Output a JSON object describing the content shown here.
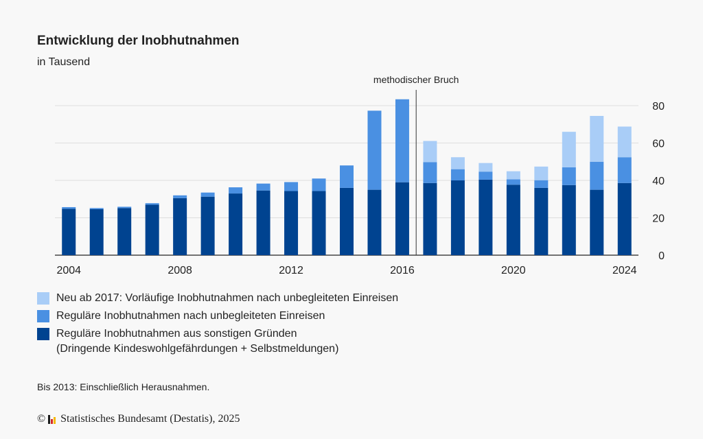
{
  "header": {
    "title": "Entwicklung der Inobhutnahmen",
    "subtitle": "in Tausend"
  },
  "legend": [
    {
      "label": "Neu ab 2017: Vorläufige Inobhutnahmen nach unbegleiteten Einreisen",
      "color": "#a9cdf7"
    },
    {
      "label": "Reguläre Inobhutnahmen nach unbegleiteten Einreisen",
      "color": "#4a90e2"
    },
    {
      "label": "Reguläre Inobhutnahmen aus sonstigen Gründen",
      "label2": "(Dringende Kindeswohlgefährdungen + Selbstmeldungen)",
      "color": "#004390"
    }
  ],
  "footnote": "Bis 2013: Einschließlich Herausnahmen.",
  "source": {
    "copyright_symbol": "©",
    "text": "Statistisches Bundesamt (Destatis), 2025",
    "logo_colors": [
      "#1a1a1a",
      "#d62728",
      "#f5b800"
    ]
  },
  "chart_data": {
    "type": "bar",
    "stacked": true,
    "categories": [
      "2004",
      "2005",
      "2006",
      "2007",
      "2008",
      "2009",
      "2010",
      "2011",
      "2012",
      "2013",
      "2014",
      "2015",
      "2016",
      "2017",
      "2018",
      "2019",
      "2020",
      "2021",
      "2022",
      "2023",
      "2024"
    ],
    "x_tick_labels": [
      "2004",
      "2008",
      "2012",
      "2016",
      "2020",
      "2024"
    ],
    "series": [
      {
        "name": "Reguläre Inobhutnahmen aus sonstigen Gründen",
        "color": "#004390",
        "values": [
          24.8,
          24.6,
          25.2,
          27.0,
          30.5,
          31.3,
          33.0,
          34.6,
          34.3,
          34.3,
          36.0,
          35.0,
          39.0,
          38.6,
          40.0,
          40.4,
          37.7,
          36.0,
          37.5,
          35.0,
          38.6
        ]
      },
      {
        "name": "Reguläre Inobhutnahmen nach unbegleiteten Einreisen",
        "color": "#4a90e2",
        "values": [
          0.9,
          0.6,
          0.7,
          0.8,
          1.5,
          2.2,
          3.3,
          3.7,
          4.8,
          6.7,
          12.0,
          42.3,
          44.4,
          11.2,
          6.0,
          4.3,
          2.9,
          4.1,
          9.5,
          15.0,
          13.8
        ]
      },
      {
        "name": "Neu ab 2017: Vorläufige Inobhutnahmen nach unbegleiteten Einreisen",
        "color": "#a9cdf7",
        "values": [
          0,
          0,
          0,
          0,
          0,
          0,
          0,
          0,
          0,
          0,
          0,
          0,
          0,
          11.3,
          6.4,
          4.6,
          4.3,
          7.3,
          19.0,
          24.5,
          16.4
        ]
      }
    ],
    "y_ticks": [
      0,
      20,
      40,
      60,
      80
    ],
    "ylim": [
      0,
      88
    ],
    "annotation": {
      "text": "methodischer Bruch",
      "after_category": "2016"
    },
    "grid": true,
    "y_axis_side": "right"
  }
}
